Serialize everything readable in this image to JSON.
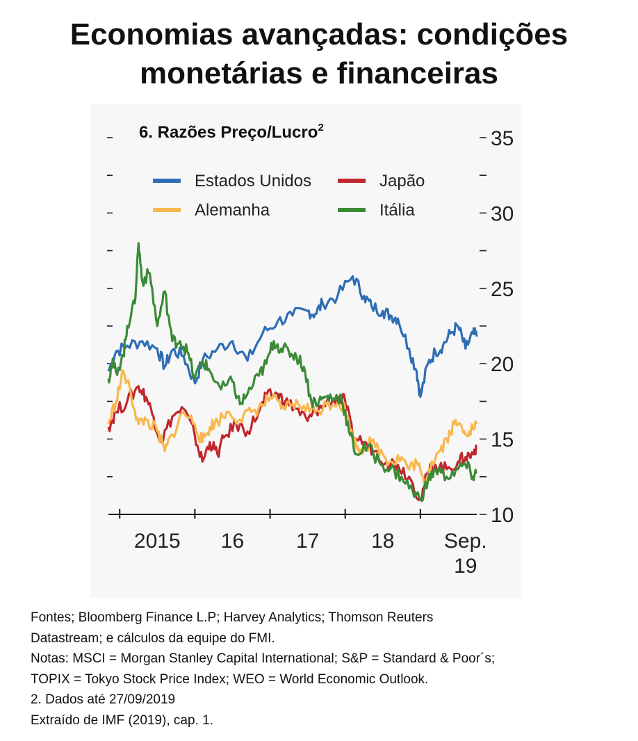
{
  "header": {
    "title_line1": "Economias avançadas: condições",
    "title_line2": "monetárias e financeiras"
  },
  "chart_data": {
    "type": "line",
    "title": "6. Razões Preço/Lucro",
    "title_superscript": "2",
    "ylim": [
      10,
      35
    ],
    "y_ticks": [
      10,
      15,
      20,
      25,
      30,
      35
    ],
    "x_ticks": [
      "2015",
      "16",
      "17",
      "18",
      "Sep."
    ],
    "x_tick_extra": "19",
    "x_range": [
      2014.85,
      2019.75
    ],
    "legend_placement": "top",
    "series": [
      {
        "name": "Estados Unidos",
        "color": "#2f6db4",
        "x": [
          2014.85,
          2014.95,
          2015.1,
          2015.3,
          2015.5,
          2015.6,
          2015.7,
          2015.85,
          2016.0,
          2016.1,
          2016.3,
          2016.5,
          2016.7,
          2016.9,
          2017.1,
          2017.3,
          2017.5,
          2017.6,
          2017.7,
          2017.9,
          2018.1,
          2018.25,
          2018.35,
          2018.5,
          2018.6,
          2018.7,
          2018.85,
          2018.95,
          2019.0,
          2019.1,
          2019.2,
          2019.3,
          2019.4,
          2019.5,
          2019.6,
          2019.7,
          2019.75
        ],
        "y": [
          19.5,
          20.8,
          21.2,
          21.5,
          21.0,
          19.8,
          20.9,
          20.5,
          18.7,
          20.2,
          21.0,
          21.5,
          20.2,
          22.0,
          22.8,
          23.2,
          23.5,
          23.3,
          24.0,
          24.5,
          25.8,
          24.5,
          23.8,
          23.5,
          23.2,
          23.0,
          21.0,
          19.5,
          17.8,
          20.0,
          20.8,
          21.2,
          22.0,
          22.5,
          21.0,
          22.0,
          21.8
        ]
      },
      {
        "name": "Japão",
        "color": "#c0262d",
        "x": [
          2014.85,
          2014.95,
          2015.1,
          2015.25,
          2015.35,
          2015.45,
          2015.55,
          2015.7,
          2015.85,
          2016.0,
          2016.1,
          2016.2,
          2016.3,
          2016.4,
          2016.55,
          2016.7,
          2016.85,
          2016.95,
          2017.1,
          2017.2,
          2017.35,
          2017.5,
          2017.6,
          2017.7,
          2017.9,
          2018.0,
          2018.1,
          2018.25,
          2018.4,
          2018.55,
          2018.7,
          2018.85,
          2019.0,
          2019.1,
          2019.2,
          2019.35,
          2019.5,
          2019.6,
          2019.7,
          2019.75
        ],
        "y": [
          15.8,
          16.8,
          17.5,
          18.5,
          17.8,
          16.5,
          14.8,
          16.5,
          17.0,
          15.2,
          13.5,
          14.8,
          14.0,
          15.2,
          16.0,
          15.5,
          16.8,
          17.8,
          18.0,
          17.5,
          17.0,
          16.2,
          16.8,
          17.2,
          17.8,
          17.5,
          15.2,
          14.8,
          14.2,
          13.5,
          13.3,
          12.5,
          11.0,
          12.8,
          13.3,
          13.0,
          13.5,
          13.8,
          14.0,
          14.6
        ]
      },
      {
        "name": "Alemanha",
        "color": "#f8b84e",
        "x": [
          2014.85,
          2014.95,
          2015.05,
          2015.15,
          2015.25,
          2015.35,
          2015.5,
          2015.6,
          2015.7,
          2015.85,
          2016.0,
          2016.1,
          2016.2,
          2016.3,
          2016.45,
          2016.6,
          2016.75,
          2016.9,
          2017.0,
          2017.15,
          2017.3,
          2017.45,
          2017.6,
          2017.75,
          2017.9,
          2018.0,
          2018.1,
          2018.2,
          2018.35,
          2018.5,
          2018.6,
          2018.75,
          2018.85,
          2018.95,
          2019.05,
          2019.15,
          2019.25,
          2019.35,
          2019.45,
          2019.55,
          2019.65,
          2019.75
        ],
        "y": [
          16.0,
          17.5,
          19.5,
          18.0,
          16.0,
          16.3,
          15.5,
          14.2,
          15.3,
          16.8,
          16.0,
          14.8,
          15.8,
          16.2,
          16.8,
          16.3,
          16.8,
          17.2,
          17.8,
          17.0,
          17.3,
          17.2,
          16.8,
          17.3,
          17.5,
          17.0,
          15.0,
          14.3,
          14.8,
          14.0,
          13.5,
          13.8,
          13.0,
          13.5,
          12.0,
          13.5,
          14.2,
          15.0,
          16.0,
          15.8,
          15.5,
          16.0
        ]
      },
      {
        "name": "Itália",
        "color": "#3b8a36",
        "x": [
          2014.85,
          2014.9,
          2014.95,
          2015.05,
          2015.1,
          2015.2,
          2015.25,
          2015.3,
          2015.4,
          2015.5,
          2015.6,
          2015.7,
          2015.8,
          2015.9,
          2016.0,
          2016.1,
          2016.2,
          2016.35,
          2016.5,
          2016.6,
          2016.7,
          2016.85,
          2016.95,
          2017.05,
          2017.15,
          2017.25,
          2017.35,
          2017.45,
          2017.55,
          2017.65,
          2017.75,
          2017.85,
          2017.95,
          2018.05,
          2018.15,
          2018.3,
          2018.45,
          2018.6,
          2018.75,
          2018.9,
          2019.0,
          2019.1,
          2019.2,
          2019.35,
          2019.5,
          2019.6,
          2019.7,
          2019.75
        ],
        "y": [
          19.0,
          20.0,
          19.5,
          20.5,
          22.5,
          24.0,
          28.0,
          25.5,
          26.0,
          22.5,
          24.8,
          21.5,
          21.5,
          20.8,
          19.0,
          20.2,
          19.5,
          18.3,
          18.8,
          17.3,
          18.0,
          19.2,
          20.0,
          21.5,
          21.0,
          20.8,
          20.5,
          19.8,
          17.5,
          17.5,
          17.8,
          17.7,
          17.8,
          15.5,
          14.0,
          14.5,
          13.5,
          13.0,
          12.5,
          11.5,
          11.0,
          12.2,
          13.0,
          12.5,
          13.0,
          13.3,
          12.5,
          12.8
        ]
      }
    ]
  },
  "notes": {
    "line1": "Fontes; Bloomberg Finance L.P; Harvey Analytics; Thomson Reuters",
    "line2": "Datastream; e cálculos da equipe do FMI.",
    "line3": "Notas: MSCI = Morgan Stanley Capital International; S&P = Standard & Poor´s;",
    "line4": "TOPIX = Tokyo Stock Price Index; WEO = World Economic Outlook.",
    "line5": "2. Dados até 27/09/2019",
    "line6": "Extraído de IMF (2019), cap. 1."
  }
}
